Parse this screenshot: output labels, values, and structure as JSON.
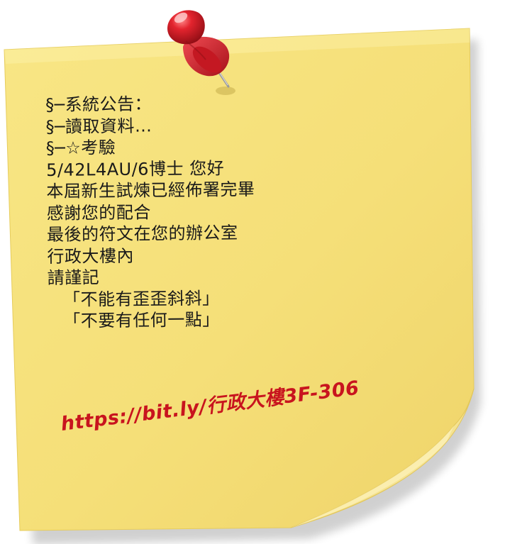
{
  "note": {
    "lines": [
      "§─系統公告：",
      "§─讀取資料…",
      "§─☆考驗",
      "5/42L4AU/6博士 您好",
      "本屆新生試煉已經佈署完畢",
      "感謝您的配合",
      "最後的符文在您的辦公室",
      "行政大樓內",
      "請謹記",
      "「不能有歪歪斜斜」",
      "「不要有任何一點」"
    ],
    "link": "https://bit.ly/行政大樓3F-306"
  },
  "colors": {
    "paper": "#f6e27d",
    "paper_edge": "#e9cf5e",
    "pin_red": "#d8202c",
    "link_red": "#c8141e"
  }
}
